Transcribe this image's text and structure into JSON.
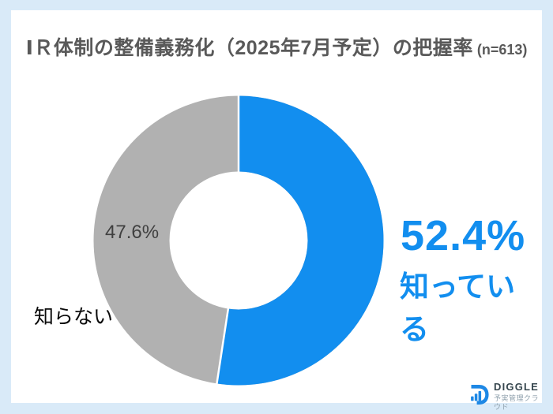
{
  "title": {
    "main": "ⅠＲ体制の整備義務化（2025年7月予定）の把握率",
    "sample_size": " (n=613)"
  },
  "chart_data": {
    "type": "pie",
    "subtype": "donut",
    "title": "ⅠＲ体制の整備義務化（2025年7月予定）の把握率 (n=613)",
    "labels": [
      "知っている",
      "知らない"
    ],
    "values": [
      52.4,
      47.6
    ],
    "unit": "%",
    "colors": [
      "#128eef",
      "#b1b1b1"
    ],
    "start_angle_deg": 0,
    "direction": "clockwise",
    "donut_hole_ratio": 0.48,
    "segment_gap_color": "#ffffff"
  },
  "callouts": {
    "know_value": "52.4%",
    "know_label": "知っている",
    "dontknow_value": "47.6%",
    "dontknow_label": "知らない"
  },
  "logo": {
    "wordmark": "DIGGLE",
    "tagline": "予実管理クラウド",
    "icon_color": "#1e88e5"
  },
  "frame": {
    "border_color": "#d9eaf8",
    "card_color": "#ffffff",
    "title_color": "#595959"
  }
}
